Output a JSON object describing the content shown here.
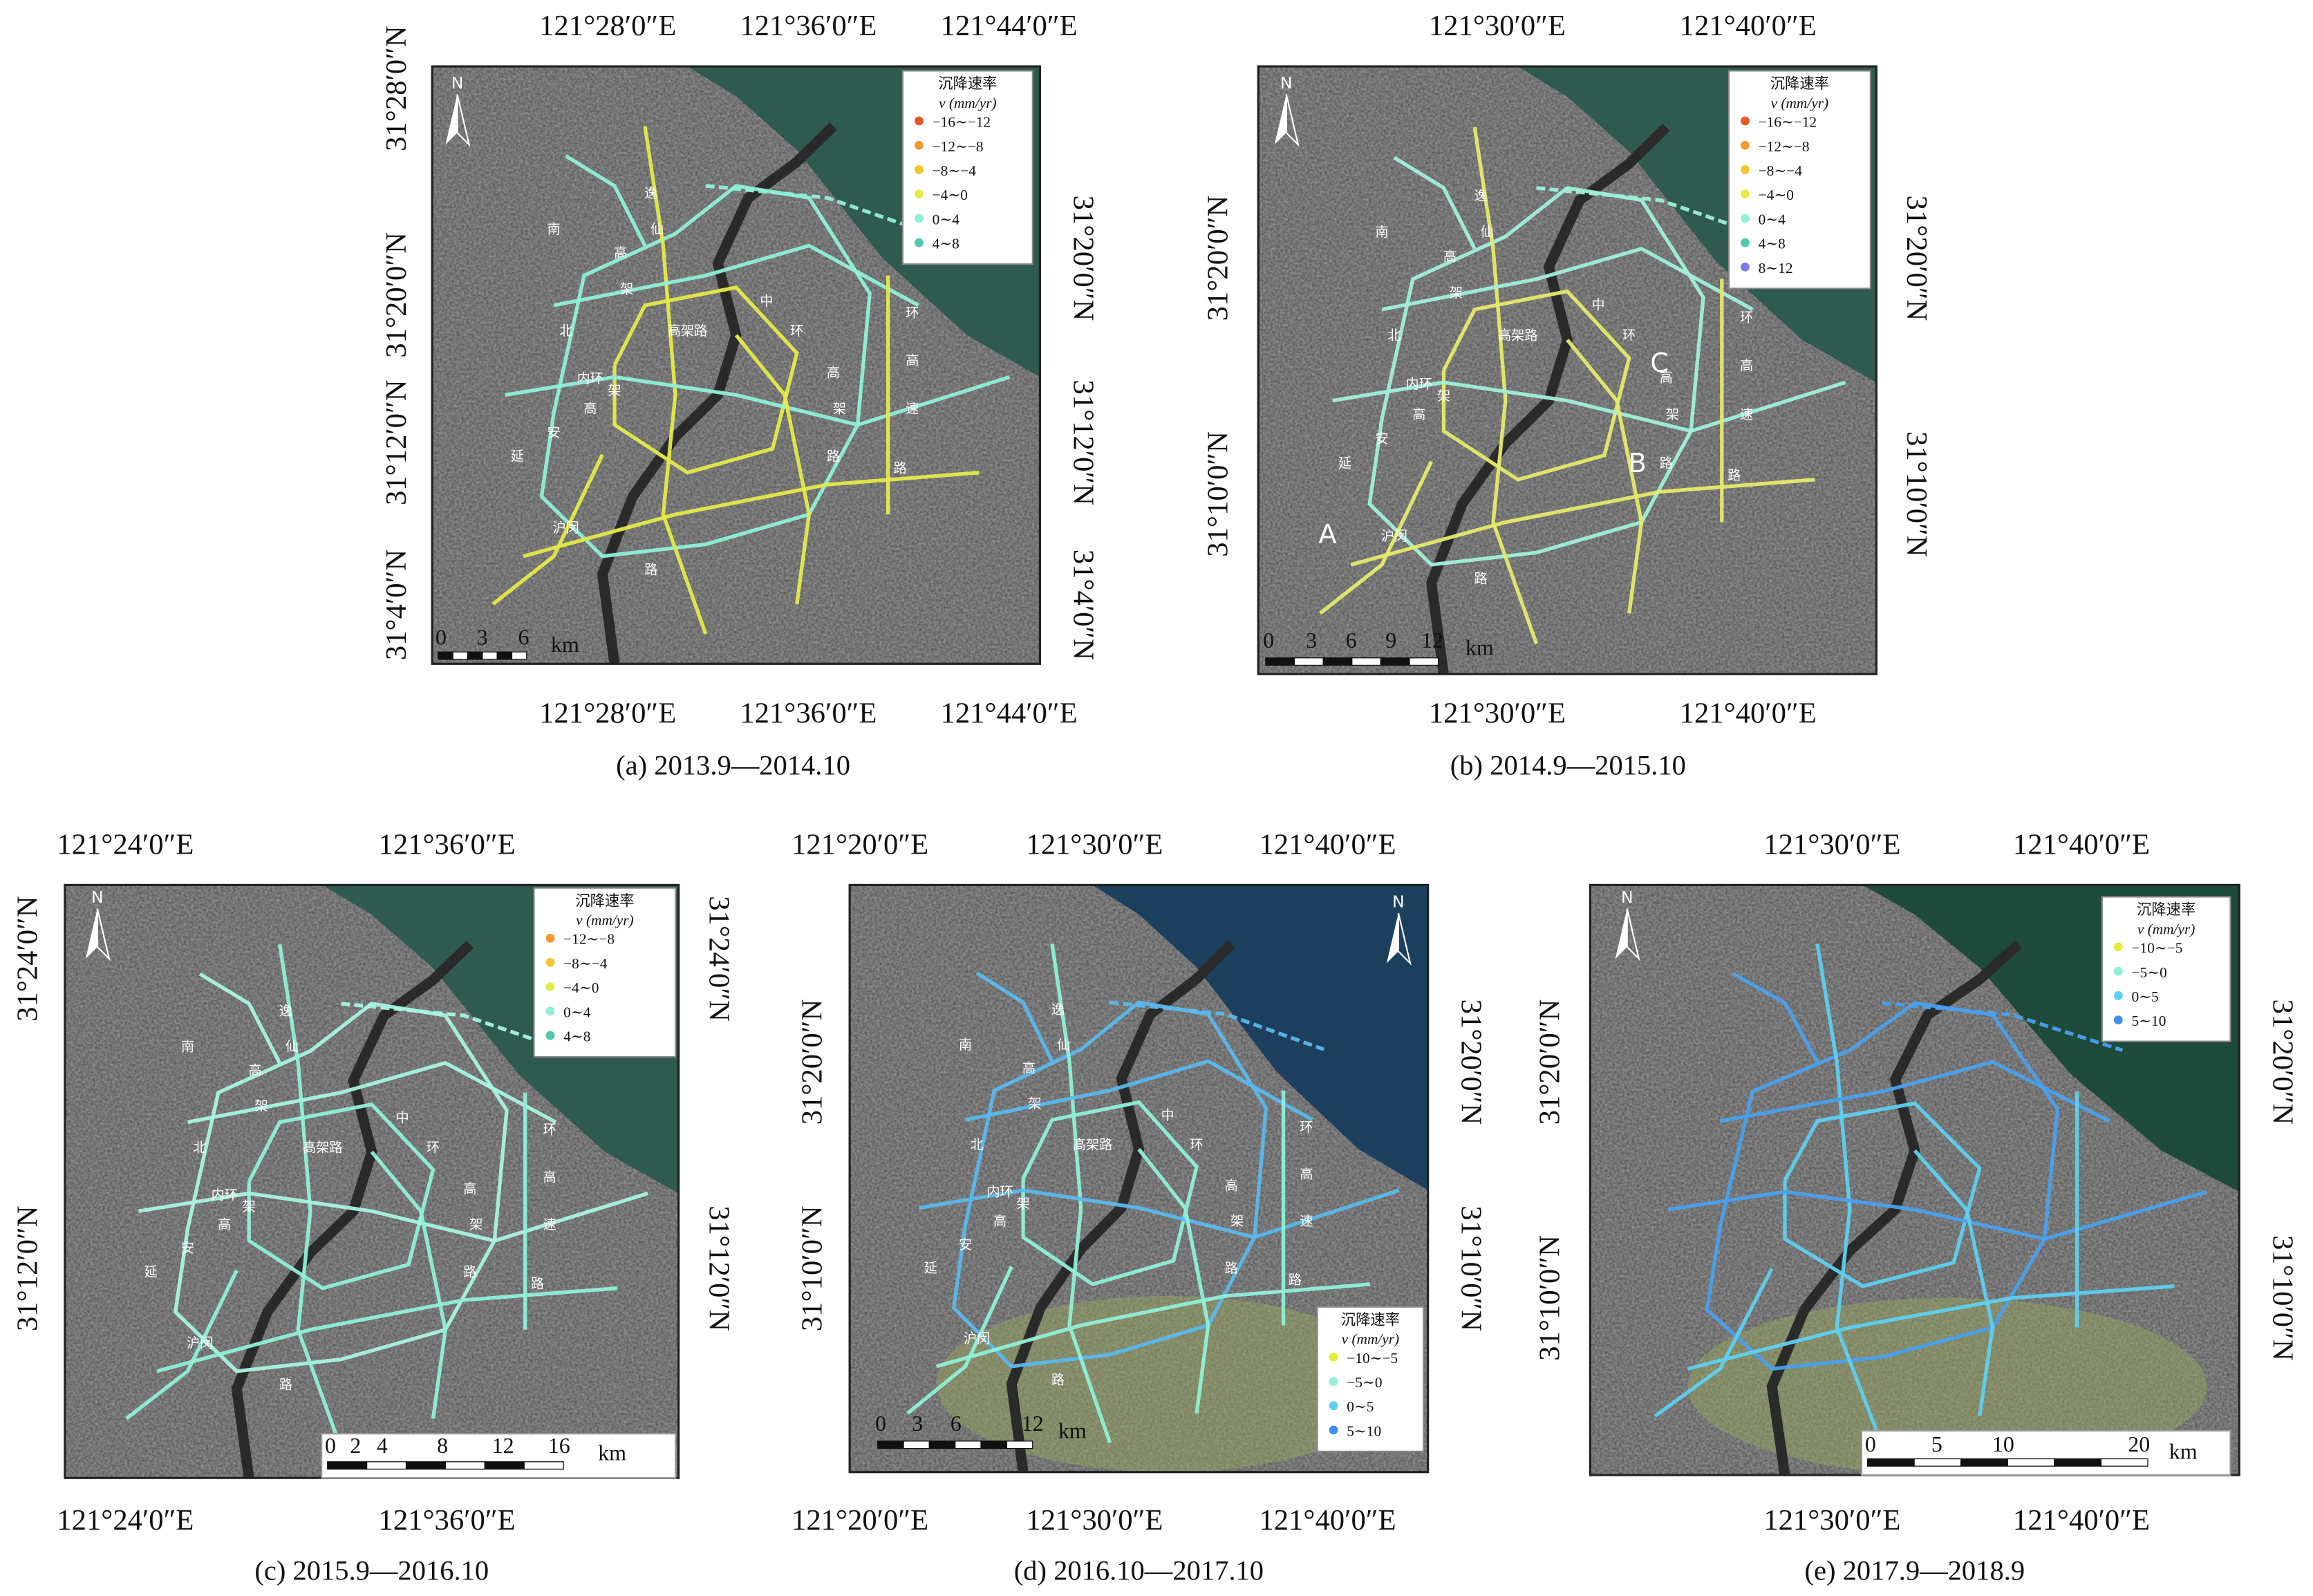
{
  "panels": [
    {
      "caption": "(a) 2013.9—2014.10",
      "north": "N",
      "lon_top": [
        "121°28′0″E",
        "121°36′0″E",
        "121°44′0″E"
      ],
      "lon_bottom": [
        "121°28′0″E",
        "121°36′0″E",
        "121°44′0″E"
      ],
      "lat_left": [
        "31°28′0″N",
        "31°20′0″N",
        "31°12′0″N",
        "31°4′0″N"
      ],
      "lat_right": [
        "31°20′0″N",
        "31°12′0″N",
        "31°4′0″N"
      ],
      "scale_labels": [
        "0",
        "3",
        "6"
      ],
      "scale_unit": "km",
      "legend": {
        "title": "沉降速率",
        "unit": "v (mm/yr)",
        "entries": [
          {
            "label": "−16∼−12",
            "color": "#e8562a"
          },
          {
            "label": "−12∼−8",
            "color": "#f29a2e"
          },
          {
            "label": "−8∼−4",
            "color": "#f2c72e"
          },
          {
            "label": "−4∼0",
            "color": "#e6ea4a"
          },
          {
            "label": "0∼4",
            "color": "#8ff0d8"
          },
          {
            "label": "4∼8",
            "color": "#4fc8b0"
          }
        ]
      },
      "road_labels": [
        "南",
        "北",
        "逸",
        "仙",
        "高",
        "架",
        "内环",
        "高架路",
        "延",
        "安",
        "高",
        "架",
        "中",
        "环",
        "高",
        "架",
        "路",
        "环",
        "高",
        "速",
        "路",
        "沪闵",
        "路"
      ],
      "letters": []
    },
    {
      "caption": "(b) 2014.9—2015.10",
      "north": "N",
      "lon_top": [
        "121°30′0″E",
        "121°40′0″E"
      ],
      "lon_bottom": [
        "121°30′0″E",
        "121°40′0″E"
      ],
      "lat_left": [
        "31°20′0″N",
        "31°10′0″N"
      ],
      "lat_right": [
        "31°20′0″N",
        "31°10′0″N"
      ],
      "scale_labels": [
        "0",
        "3",
        "6",
        "9",
        "12"
      ],
      "scale_unit": "km",
      "legend": {
        "title": "沉降速率",
        "unit": "v (mm/yr)",
        "entries": [
          {
            "label": "−16∼−12",
            "color": "#e8562a"
          },
          {
            "label": "−12∼−8",
            "color": "#f29a2e"
          },
          {
            "label": "−8∼−4",
            "color": "#f2c72e"
          },
          {
            "label": "−4∼0",
            "color": "#e6ea4a"
          },
          {
            "label": "0∼4",
            "color": "#8ff0d8"
          },
          {
            "label": "4∼8",
            "color": "#4fc8b0"
          },
          {
            "label": "8∼12",
            "color": "#7a7ae8"
          }
        ]
      },
      "road_labels": [
        "南",
        "北",
        "逸",
        "仙",
        "高",
        "架",
        "内环",
        "高架路",
        "延",
        "安",
        "高",
        "架",
        "中",
        "环",
        "高",
        "架",
        "路",
        "环",
        "高",
        "速",
        "路",
        "沪闵",
        "路"
      ],
      "letters": [
        "A",
        "B",
        "C"
      ]
    },
    {
      "caption": "(c) 2015.9—2016.10",
      "north": "N",
      "lon_top": [
        "121°24′0″E",
        "121°36′0″E"
      ],
      "lon_bottom": [
        "121°24′0″E",
        "121°36′0″E"
      ],
      "lat_left": [
        "31°24′0″N",
        "31°12′0″N"
      ],
      "lat_right": [
        "31°24′0″N",
        "31°12′0″N"
      ],
      "scale_labels": [
        "0",
        "2",
        "4",
        "8",
        "12",
        "16"
      ],
      "scale_unit": "km",
      "legend": {
        "title": "沉降速率",
        "unit": "v (mm/yr)",
        "entries": [
          {
            "label": "−12∼−8",
            "color": "#f29a2e"
          },
          {
            "label": "−8∼−4",
            "color": "#f2c72e"
          },
          {
            "label": "−4∼0",
            "color": "#e6ea4a"
          },
          {
            "label": "0∼4",
            "color": "#8ff0d8"
          },
          {
            "label": "4∼8",
            "color": "#4fc8b0"
          }
        ]
      },
      "road_labels": [
        "南",
        "北",
        "逸",
        "仙",
        "高",
        "架",
        "内环",
        "高架路",
        "延",
        "安",
        "高",
        "架",
        "中",
        "环",
        "高",
        "架",
        "路",
        "环",
        "高",
        "速",
        "路",
        "沪闵",
        "路"
      ],
      "letters": []
    },
    {
      "caption": "(d) 2016.10—2017.10",
      "north": "N",
      "lon_top": [
        "121°20′0″E",
        "121°30′0″E",
        "121°40′0″E"
      ],
      "lon_bottom": [
        "121°20′0″E",
        "121°30′0″E",
        "121°40′0″E"
      ],
      "lat_left": [
        "31°20′0″N",
        "31°10′0″N"
      ],
      "lat_right": [
        "31°20′0″N",
        "31°10′0″N"
      ],
      "scale_labels": [
        "0",
        "3",
        "6",
        "12"
      ],
      "scale_unit": "km",
      "legend": {
        "title": "沉降速率",
        "unit": "v (mm/yr)",
        "entries": [
          {
            "label": "−10∼−5",
            "color": "#e6ea3a"
          },
          {
            "label": "−5∼0",
            "color": "#8ff0d8"
          },
          {
            "label": "0∼5",
            "color": "#5ed0f0"
          },
          {
            "label": "5∼10",
            "color": "#3f8ee8"
          }
        ]
      },
      "road_labels": [
        "南",
        "北",
        "逸",
        "仙",
        "高",
        "架",
        "内环",
        "高架路",
        "延",
        "安",
        "高",
        "架",
        "中",
        "环",
        "高",
        "架",
        "路",
        "环",
        "高",
        "速",
        "路",
        "沪闵",
        "路"
      ],
      "letters": []
    },
    {
      "caption": "(e) 2017.9—2018.9",
      "north": "N",
      "lon_top": [
        "121°30′0″E",
        "121°40′0″E"
      ],
      "lon_bottom": [
        "121°30′0″E",
        "121°40′0″E"
      ],
      "lat_left": [
        "31°20′0″N",
        "31°10′0″N"
      ],
      "lat_right": [
        "31°20′0″N",
        "31°10′0″N"
      ],
      "scale_labels": [
        "0",
        "5",
        "10",
        "20"
      ],
      "scale_unit": "km",
      "legend": {
        "title": "沉降速率",
        "unit": "v (mm/yr)",
        "entries": [
          {
            "label": "−10∼−5",
            "color": "#e6ea3a"
          },
          {
            "label": "−5∼0",
            "color": "#8ff0d8"
          },
          {
            "label": "0∼5",
            "color": "#5ed0f0"
          },
          {
            "label": "5∼10",
            "color": "#3f8ee8"
          }
        ]
      },
      "road_labels": [],
      "letters": []
    }
  ]
}
